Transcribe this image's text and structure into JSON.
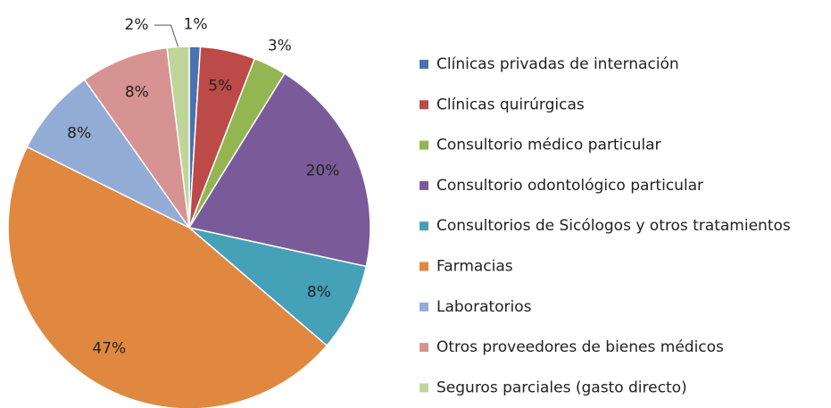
{
  "chart_data": {
    "type": "pie",
    "categories": [
      "Clínicas privadas de internación",
      "Clínicas quirúrgicas",
      "Consultorio médico particular",
      "Consultorio odontológico particular",
      "Consultorios de Sicólogos y otros tratamientos",
      "Farmacias",
      "Laboratorios",
      "Otros proveedores de bienes médicos",
      "Seguros parciales (gasto directo)"
    ],
    "values": [
      1,
      5,
      3,
      20,
      8,
      47,
      8,
      8,
      2
    ],
    "value_labels": [
      "1%",
      "5%",
      "3%",
      "20%",
      "8%",
      "47%",
      "8%",
      "8%",
      "2%"
    ],
    "colors": [
      "#4a72b0",
      "#bc4a48",
      "#93b552",
      "#795b9a",
      "#45a1b8",
      "#e0883f",
      "#93acd5",
      "#d79391",
      "#bfd59a"
    ],
    "legend": "right"
  }
}
